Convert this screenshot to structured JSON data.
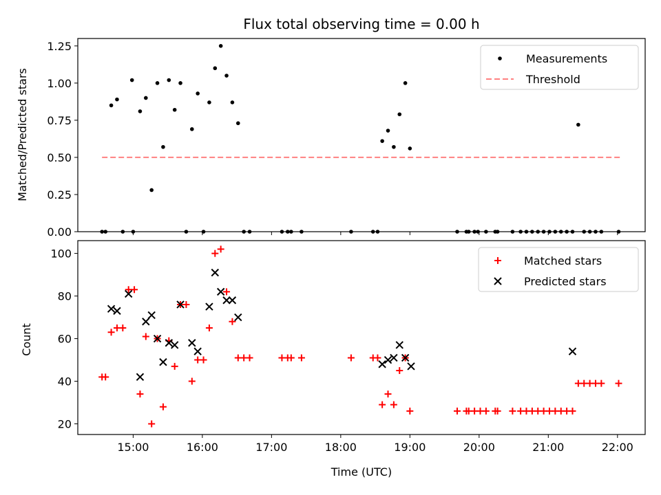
{
  "chart_data": [
    {
      "type": "scatter",
      "title": "Flux total observing time = 0.00 h",
      "xlabel": "",
      "ylabel": "Matched/Predicted stars",
      "xlim": [
        "14:12",
        "22:24"
      ],
      "ylim": [
        0,
        1.3
      ],
      "xticks": [
        "15:00",
        "16:00",
        "17:00",
        "18:00",
        "19:00",
        "20:00",
        "21:00",
        "22:00"
      ],
      "yticks": [
        "0.00",
        "0.25",
        "0.50",
        "0.75",
        "1.00",
        "1.25"
      ],
      "legend_position": "top-right",
      "grid": false,
      "series": [
        {
          "name": "Measurements",
          "color": "#000000",
          "marker": "dot",
          "x": [
            "14:33",
            "14:36",
            "14:41",
            "14:46",
            "14:51",
            "14:59",
            "15:00",
            "15:06",
            "15:11",
            "15:16",
            "15:21",
            "15:26",
            "15:31",
            "15:36",
            "15:41",
            "15:46",
            "15:51",
            "15:56",
            "16:01",
            "16:06",
            "16:11",
            "16:16",
            "16:21",
            "16:26",
            "16:31",
            "16:36",
            "16:41",
            "17:09",
            "17:14",
            "17:17",
            "17:26",
            "18:09",
            "18:28",
            "18:32",
            "18:36",
            "18:41",
            "18:46",
            "18:51",
            "18:56",
            "19:00",
            "19:41",
            "19:49",
            "19:51",
            "19:56",
            "19:59",
            "20:06",
            "20:14",
            "20:16",
            "20:29",
            "20:36",
            "20:41",
            "20:46",
            "20:51",
            "20:56",
            "21:01",
            "21:06",
            "21:11",
            "21:16",
            "21:21",
            "21:26",
            "21:31",
            "21:36",
            "21:41",
            "21:46",
            "22:01"
          ],
          "values": [
            0,
            0,
            0.85,
            0.89,
            0,
            1.02,
            0,
            0.81,
            0.9,
            0.28,
            1.0,
            0.57,
            1.02,
            0.82,
            1.0,
            0,
            0.69,
            0.93,
            0,
            0.87,
            1.1,
            1.25,
            1.05,
            0.87,
            0.73,
            0,
            0,
            0,
            0,
            0,
            0,
            0,
            0,
            0,
            0.61,
            0.68,
            0.57,
            0.79,
            1.0,
            0.56,
            0,
            0,
            0,
            0,
            0,
            0,
            0,
            0,
            0,
            0,
            0,
            0,
            0,
            0,
            0,
            0,
            0,
            0,
            0,
            0.72,
            0,
            0,
            0,
            0,
            0
          ]
        },
        {
          "name": "Threshold",
          "color": "#ff8080",
          "marker": "dashed-line",
          "x": [
            "14:33",
            "22:04"
          ],
          "values": [
            0.5,
            0.5
          ]
        }
      ]
    },
    {
      "type": "scatter",
      "title": "",
      "xlabel": "Time (UTC)",
      "ylabel": "Count",
      "xlim": [
        "14:12",
        "22:24"
      ],
      "ylim": [
        15,
        106
      ],
      "xticks": [
        "15:00",
        "16:00",
        "17:00",
        "18:00",
        "19:00",
        "20:00",
        "21:00",
        "22:00"
      ],
      "yticks": [
        "20",
        "40",
        "60",
        "80",
        "100"
      ],
      "legend_position": "top-right",
      "grid": false,
      "series": [
        {
          "name": "Matched stars",
          "color": "#ff0000",
          "marker": "plus",
          "x": [
            "14:33",
            "14:36",
            "14:41",
            "14:46",
            "14:51",
            "14:56",
            "15:01",
            "15:06",
            "15:11",
            "15:16",
            "15:21",
            "15:26",
            "15:31",
            "15:36",
            "15:41",
            "15:46",
            "15:51",
            "15:56",
            "16:01",
            "16:06",
            "16:11",
            "16:16",
            "16:21",
            "16:26",
            "16:31",
            "16:36",
            "16:41",
            "17:09",
            "17:14",
            "17:17",
            "17:26",
            "18:09",
            "18:28",
            "18:32",
            "18:36",
            "18:41",
            "18:46",
            "18:51",
            "18:56",
            "19:00",
            "19:41",
            "19:49",
            "19:51",
            "19:56",
            "20:01",
            "20:06",
            "20:14",
            "20:16",
            "20:29",
            "20:36",
            "20:41",
            "20:46",
            "20:51",
            "20:56",
            "21:01",
            "21:06",
            "21:11",
            "21:16",
            "21:21",
            "21:26",
            "21:31",
            "21:36",
            "21:41",
            "21:46",
            "22:01"
          ],
          "values": [
            42,
            42,
            63,
            65,
            65,
            83,
            83,
            34,
            61,
            20,
            60,
            28,
            59,
            47,
            76,
            76,
            40,
            50,
            50,
            65,
            100,
            102,
            82,
            68,
            51,
            51,
            51,
            51,
            51,
            51,
            51,
            51,
            51,
            51,
            29,
            34,
            29,
            45,
            51,
            26,
            26,
            26,
            26,
            26,
            26,
            26,
            26,
            26,
            26,
            26,
            26,
            26,
            26,
            26,
            26,
            26,
            26,
            26,
            26,
            39,
            39,
            39,
            39,
            39,
            39
          ]
        },
        {
          "name": "Predicted stars",
          "color": "#000000",
          "marker": "x",
          "x": [
            "14:41",
            "14:46",
            "14:56",
            "15:06",
            "15:11",
            "15:16",
            "15:21",
            "15:26",
            "15:31",
            "15:36",
            "15:41",
            "15:51",
            "15:56",
            "16:06",
            "16:11",
            "16:16",
            "16:21",
            "16:26",
            "16:31",
            "18:36",
            "18:41",
            "18:46",
            "18:51",
            "18:56",
            "19:01",
            "21:21"
          ],
          "values": [
            74,
            73,
            81,
            42,
            68,
            71,
            60,
            49,
            58,
            57,
            76,
            58,
            54,
            75,
            91,
            82,
            78,
            78,
            70,
            48,
            50,
            51,
            57,
            51,
            47,
            54
          ]
        }
      ]
    }
  ]
}
